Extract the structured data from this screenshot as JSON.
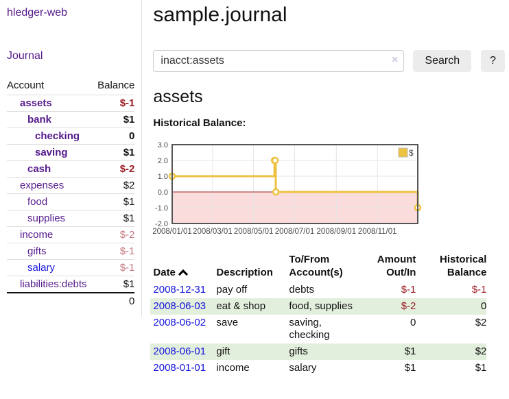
{
  "app": {
    "title": "hledger-web",
    "nav_journal": "Journal"
  },
  "colors": {
    "link_visited_purple": "#551a8b",
    "link_blue": "#1414dd",
    "negative_strong": "#9a1c24",
    "negative_soft": "#c4767e",
    "row_alt_green": "#e3efdd",
    "chart_line": "#EDC240"
  },
  "sidebar": {
    "columns": {
      "account": "Account",
      "balance": "Balance"
    },
    "accounts": [
      {
        "name": "assets",
        "indent": 1,
        "balance": "$-1",
        "bold": true,
        "negative": "strong"
      },
      {
        "name": "bank",
        "indent": 2,
        "balance": "$1",
        "bold": true
      },
      {
        "name": "checking",
        "indent": 3,
        "balance": "0",
        "bold": true
      },
      {
        "name": "saving",
        "indent": 3,
        "balance": "$1",
        "bold": true
      },
      {
        "name": "cash",
        "indent": 2,
        "balance": "$-2",
        "bold": true,
        "negative": "strong"
      },
      {
        "name": "expenses",
        "indent": 1,
        "balance": "$2"
      },
      {
        "name": "food",
        "indent": 2,
        "balance": "$1"
      },
      {
        "name": "supplies",
        "indent": 2,
        "balance": "$1"
      },
      {
        "name": "income",
        "indent": 1,
        "balance": "$-2",
        "negative": "soft"
      },
      {
        "name": "gifts",
        "indent": 2,
        "balance": "$-1",
        "negative": "soft"
      },
      {
        "name": "salary",
        "indent": 2,
        "balance": "$-1",
        "negative": "soft",
        "link_color": "blue"
      },
      {
        "name": "liabilities:debts",
        "indent": 1,
        "balance": "$1"
      }
    ],
    "total": "0"
  },
  "header": {
    "title": "sample.journal"
  },
  "search": {
    "value": "inacct:assets",
    "clear_icon": "×",
    "button": "Search",
    "help_button": "?"
  },
  "account_page": {
    "title": "assets",
    "chart_label": "Historical Balance:"
  },
  "chart_data": {
    "type": "line",
    "step": true,
    "title": "Historical Balance:",
    "series": [
      {
        "name": "$",
        "color": "#EDC240",
        "points": [
          [
            "2008-01-01",
            1
          ],
          [
            "2008-06-01",
            2
          ],
          [
            "2008-06-02",
            2
          ],
          [
            "2008-06-03",
            0
          ],
          [
            "2008-12-31",
            -1
          ]
        ]
      }
    ],
    "x_ticks": [
      "2008/01/01",
      "2008/03/01",
      "2008/05/01",
      "2008/07/01",
      "2008/09/01",
      "2008/11/01"
    ],
    "y_ticks": [
      "3.0",
      "2.0",
      "1.0",
      "0.0",
      "-1.0",
      "-2.0"
    ],
    "ylim": [
      -2,
      3
    ],
    "xlim": [
      "2008-01-01",
      "2008-12-31"
    ],
    "legend": {
      "label": "$",
      "position": "top-right"
    },
    "grid": true,
    "colors": {
      "negative_region": "#fbdcdc",
      "zero_line": "#992222",
      "grid": "#e6e6e6",
      "border": "#545454",
      "labels": "#4a4a4a"
    }
  },
  "register": {
    "columns": {
      "date": "Date",
      "sort": "asc",
      "description": "Description",
      "accounts": "To/From Account(s)",
      "amount": "Amount Out/In",
      "balance": "Historical Balance"
    },
    "rows": [
      {
        "date": "2008-12-31",
        "description": "pay off",
        "accounts": "debts",
        "amount": "$-1",
        "balance": "$-1"
      },
      {
        "date": "2008-06-03",
        "description": "eat & shop",
        "accounts": "food, supplies",
        "amount": "$-2",
        "balance": "0"
      },
      {
        "date": "2008-06-02",
        "description": "save",
        "accounts": "saving, checking",
        "amount": "0",
        "balance": "$2"
      },
      {
        "date": "2008-06-01",
        "description": "gift",
        "accounts": "gifts",
        "amount": "$1",
        "balance": "$2"
      },
      {
        "date": "2008-01-01",
        "description": "income",
        "accounts": "salary",
        "amount": "$1",
        "balance": "$1"
      }
    ]
  }
}
